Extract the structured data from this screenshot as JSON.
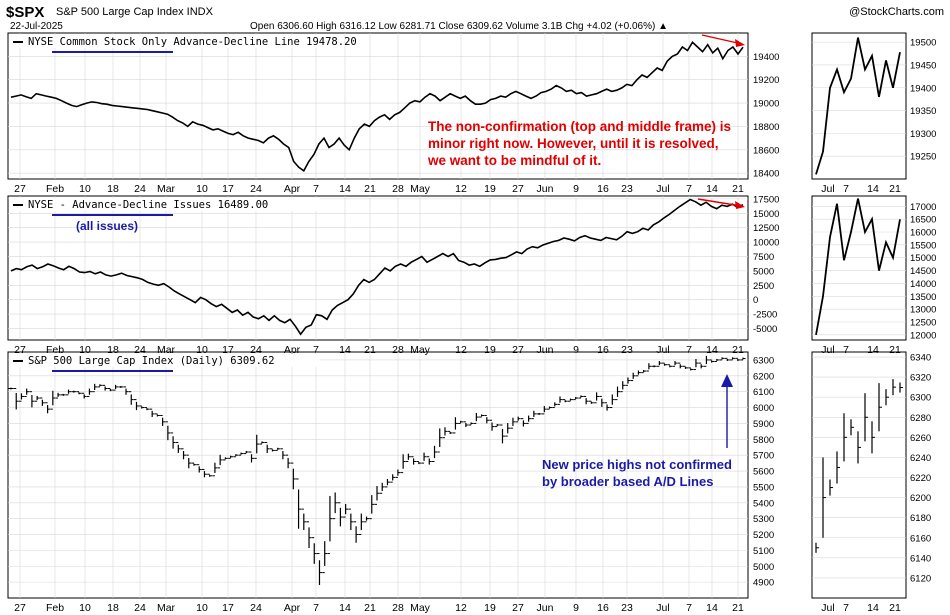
{
  "header": {
    "symbol": "$SPX",
    "title": "S&P 500 Large Cap Index INDX",
    "date": "22-Jul-2025",
    "ohlc": "Open 6306.60  High 6316.12  Low 6281.71  Close 6309.62  Volume 3.1B  Chg +4.02 (+0.06%) ▲",
    "brand": "@StockCharts.com"
  },
  "colors": {
    "annotation_red": "#e00000",
    "annotation_blue": "#1a1aa8",
    "line": "#000000",
    "grid": "#d8d8d8"
  },
  "month_labels": [
    "27",
    "Feb",
    "10",
    "18",
    "24",
    "Mar",
    "10",
    "17",
    "24",
    "Apr",
    "7",
    "14",
    "21",
    "28",
    "May",
    "12",
    "19",
    "27",
    "Jun",
    "9",
    "16",
    "23",
    "Jul",
    "7",
    "14",
    "21"
  ],
  "zoom_labels": [
    "Jul",
    "7",
    "14",
    "21"
  ],
  "annotations": {
    "top": "The non-confirmation (top and middle frame) is\nminor right now. However, until  it is resolved,\nwe want to be mindful of it.",
    "middle": "(all issues)",
    "bottom": "New price highs not confirmed\nby broader based A/D Lines"
  },
  "chart_data": [
    {
      "type": "line",
      "title": "NYSE Common Stock Only Advance-Decline Line 19478.20",
      "ylim": [
        18350,
        19600
      ],
      "y_ticks": [
        18400,
        18600,
        18800,
        19000,
        19200,
        19400
      ],
      "values": [
        19050,
        19060,
        19070,
        19055,
        19040,
        19080,
        19070,
        19060,
        19050,
        19040,
        19020,
        19000,
        18980,
        18970,
        18985,
        19000,
        19010,
        19005,
        18995,
        18990,
        18980,
        18975,
        18970,
        18965,
        18960,
        18955,
        18950,
        18945,
        18935,
        18925,
        18915,
        18905,
        18880,
        18850,
        18830,
        18800,
        18840,
        18820,
        18810,
        18790,
        18770,
        18780,
        18760,
        18740,
        18730,
        18750,
        18720,
        18700,
        18690,
        18680,
        18660,
        18700,
        18720,
        18690,
        18650,
        18620,
        18500,
        18450,
        18420,
        18500,
        18560,
        18650,
        18700,
        18620,
        18650,
        18700,
        18640,
        18600,
        18700,
        18780,
        18820,
        18800,
        18850,
        18880,
        18900,
        18860,
        18900,
        18920,
        18960,
        19000,
        19020,
        19010,
        19050,
        19080,
        19060,
        19020,
        19050,
        19080,
        19060,
        19040,
        19060,
        19020,
        18990,
        18990,
        19000,
        19030,
        19040,
        19060,
        19050,
        19080,
        19100,
        19080,
        19060,
        19040,
        19060,
        19090,
        19100,
        19120,
        19150,
        19130,
        19100,
        19110,
        19080,
        19090,
        19060,
        19070,
        19080,
        19100,
        19120,
        19100,
        19110,
        19130,
        19160,
        19150,
        19200,
        19240,
        19220,
        19260,
        19300,
        19280,
        19360,
        19400,
        19420,
        19480,
        19450,
        19520,
        19480,
        19440,
        19500,
        19430,
        19470,
        19380,
        19450,
        19480,
        19420,
        19478
      ],
      "zoom": {
        "ylim": [
          19200,
          19520
        ],
        "y_ticks": [
          19250,
          19300,
          19350,
          19400,
          19450,
          19500
        ],
        "values": [
          19210,
          19260,
          19400,
          19440,
          19390,
          19420,
          19510,
          19440,
          19470,
          19380,
          19460,
          19400,
          19478
        ]
      }
    },
    {
      "type": "line",
      "title": "NYSE - Advance-Decline Issues 16489.00",
      "ylim": [
        -7000,
        18000
      ],
      "y_ticks": [
        -5000,
        -2500,
        0,
        2500,
        5000,
        7500,
        10000,
        12500,
        15000,
        17500
      ],
      "values": [
        5000,
        5400,
        5200,
        5700,
        6000,
        5400,
        5700,
        6200,
        5900,
        5500,
        5200,
        5800,
        5400,
        4800,
        4700,
        4900,
        4500,
        4800,
        4300,
        4100,
        4300,
        4600,
        4200,
        4000,
        3800,
        3500,
        3000,
        2700,
        2500,
        2800,
        2200,
        1500,
        1000,
        500,
        0,
        -500,
        400,
        0,
        -700,
        -1200,
        -800,
        -1500,
        -2200,
        -1800,
        -2700,
        -2200,
        -3000,
        -3300,
        -2800,
        -3600,
        -2800,
        -3600,
        -4000,
        -3400,
        -4600,
        -6000,
        -4800,
        -4400,
        -2600,
        -2800,
        -3400,
        -1800,
        -1000,
        -500,
        0,
        1000,
        2500,
        3500,
        3000,
        3500,
        4500,
        5500,
        5000,
        5800,
        6200,
        5800,
        6500,
        7000,
        7500,
        6500,
        7000,
        7500,
        8000,
        7500,
        8000,
        6800,
        6500,
        6000,
        6200,
        5800,
        6400,
        6900,
        7000,
        7200,
        7300,
        7800,
        8300,
        8000,
        8800,
        9200,
        9000,
        9500,
        9800,
        10100,
        10300,
        10700,
        10500,
        10200,
        10800,
        11100,
        10700,
        10500,
        10300,
        10800,
        10600,
        10400,
        11000,
        11800,
        11500,
        11800,
        12400,
        12100,
        13000,
        13500,
        14200,
        14800,
        15500,
        16200,
        16800,
        17400,
        17000,
        16400,
        16900,
        16200,
        15800,
        16400,
        16200,
        16600,
        16000,
        16489
      ],
      "zoom": {
        "ylim": [
          11800,
          17400
        ],
        "y_ticks": [
          12000,
          12500,
          13000,
          13500,
          14000,
          14500,
          15000,
          15500,
          16000,
          16500,
          17000
        ],
        "values": [
          12000,
          13500,
          15800,
          17100,
          14900,
          16000,
          17300,
          16000,
          16500,
          14500,
          15600,
          15000,
          16489
        ]
      }
    },
    {
      "type": "line",
      "title": "S&P 500 Large Cap Index (Daily) 6309.62",
      "ylim": [
        4800,
        6350
      ],
      "y_ticks": [
        4900,
        5000,
        5100,
        5200,
        5300,
        5400,
        5500,
        5600,
        5700,
        5800,
        5900,
        6000,
        6100,
        6200,
        6300
      ],
      "values": [
        6120,
        6040,
        6070,
        6100,
        6040,
        6060,
        6030,
        5990,
        6060,
        6080,
        6080,
        6100,
        6100,
        6090,
        6070,
        6100,
        6130,
        6140,
        6120,
        6110,
        6130,
        6130,
        6100,
        6050,
        6010,
        6000,
        5990,
        5960,
        5950,
        5910,
        5840,
        5780,
        5740,
        5700,
        5650,
        5640,
        5610,
        5580,
        5570,
        5620,
        5670,
        5680,
        5690,
        5700,
        5710,
        5720,
        5680,
        5770,
        5780,
        5740,
        5730,
        5740,
        5700,
        5650,
        5550,
        5360,
        5280,
        5180,
        5080,
        4960,
        5080,
        5300,
        5400,
        5310,
        5360,
        5280,
        5200,
        5280,
        5300,
        5390,
        5460,
        5500,
        5530,
        5560,
        5590,
        5660,
        5690,
        5660,
        5650,
        5690,
        5660,
        5720,
        5810,
        5850,
        5840,
        5900,
        5910,
        5890,
        5900,
        5940,
        5950,
        5920,
        5880,
        5890,
        5820,
        5870,
        5910,
        5930,
        5900,
        5930,
        5960,
        5960,
        5990,
        6000,
        6020,
        6050,
        6040,
        6050,
        6060,
        6070,
        6040,
        6030,
        6070,
        6030,
        6000,
        6050,
        6100,
        6140,
        6170,
        6200,
        6220,
        6230,
        6260,
        6260,
        6280,
        6270,
        6260,
        6280,
        6260,
        6250,
        6240,
        6280,
        6260,
        6300,
        6290,
        6300,
        6310,
        6300,
        6310,
        6300,
        6309
      ],
      "zoom": {
        "ylim": [
          6100,
          6345
        ],
        "y_ticks": [
          6120,
          6140,
          6160,
          6180,
          6200,
          6220,
          6240,
          6260,
          6280,
          6300,
          6320,
          6340
        ],
        "values": [
          6150,
          6200,
          6210,
          6230,
          6260,
          6270,
          6250,
          6280,
          6260,
          6290,
          6300,
          6310,
          6309.62
        ]
      }
    }
  ]
}
